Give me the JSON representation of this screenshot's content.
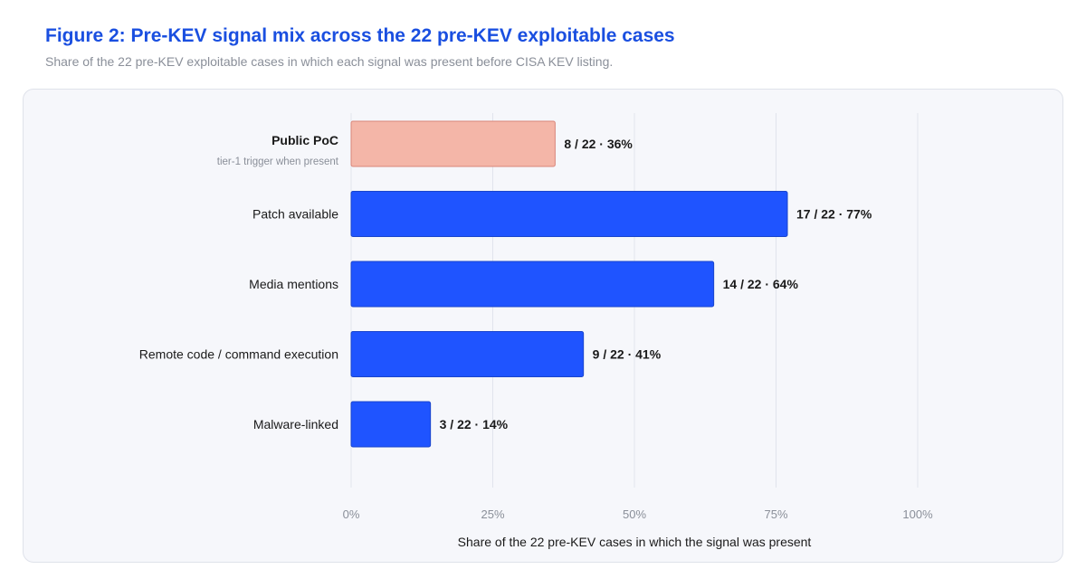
{
  "figure": {
    "title": "Figure 2: Pre-KEV signal mix across the 22 pre-KEV exploitable cases",
    "subtitle": "Share of the 22 pre-KEV exploitable cases in which each signal was present before CISA KEV listing."
  },
  "chart_data": {
    "type": "bar",
    "orientation": "horizontal",
    "categories": [
      "Public PoC",
      "Patch available",
      "Media mentions",
      "Remote code / command execution",
      "Malware-linked"
    ],
    "category_notes": [
      "tier-1 trigger when present",
      "",
      "",
      "",
      ""
    ],
    "counts": [
      8,
      17,
      14,
      9,
      3
    ],
    "total": 22,
    "values": [
      36,
      77,
      64,
      41,
      14
    ],
    "data_labels": [
      "8 / 22 · 36%",
      "17 / 22 · 77%",
      "14 / 22 · 64%",
      "9 / 22 · 41%",
      "3 / 22 · 14%"
    ],
    "highlight_index": 0,
    "xlabel": "Share of the 22 pre-KEV cases in which the signal was present",
    "ylabel": "",
    "xlim": [
      0,
      100
    ],
    "xticks": [
      0,
      25,
      50,
      75,
      100
    ],
    "xtick_labels": [
      "0%",
      "25%",
      "50%",
      "75%",
      "100%"
    ],
    "grid": "vertical",
    "colors": {
      "bar": "#1f54ff",
      "bar_border": "#1a45cc",
      "highlight": "#f4b6a8",
      "highlight_border": "#d9857a",
      "grid": "#e1e4ec",
      "label": "#1a1a1a",
      "note": "#8a8f99",
      "tick": "#8a8f99"
    }
  }
}
